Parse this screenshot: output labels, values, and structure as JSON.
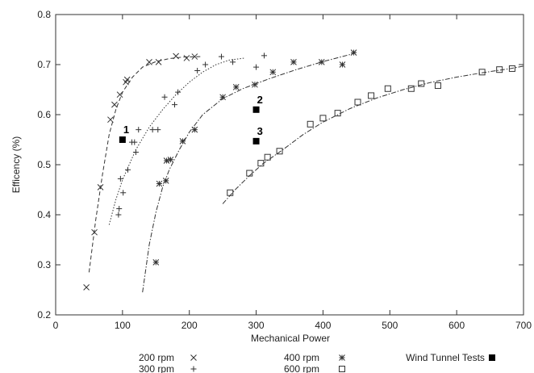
{
  "chart_data": {
    "type": "scatter",
    "xlabel": "Mechanical Power",
    "ylabel": "Efficency (%)",
    "xlim": [
      0,
      700
    ],
    "ylim": [
      0.2,
      0.8
    ],
    "x_ticks": [
      "0",
      "100",
      "200",
      "300",
      "400",
      "500",
      "600",
      "700"
    ],
    "y_ticks": [
      "0.2",
      "0.3",
      "0.4",
      "0.5",
      "0.6",
      "0.7",
      "0.8"
    ],
    "grid": false,
    "legend_position": "bottom",
    "series": [
      {
        "name": "200 rpm",
        "marker": "x",
        "points": [
          [
            46,
            0.255
          ],
          [
            58,
            0.365
          ],
          [
            67,
            0.455
          ],
          [
            82,
            0.59
          ],
          [
            88,
            0.62
          ],
          [
            96,
            0.64
          ],
          [
            105,
            0.665
          ],
          [
            107,
            0.67
          ],
          [
            140,
            0.705
          ],
          [
            154,
            0.705
          ],
          [
            180,
            0.717
          ],
          [
            196,
            0.713
          ],
          [
            208,
            0.716
          ]
        ],
        "fit": [
          [
            50,
            0.285
          ],
          [
            60,
            0.39
          ],
          [
            70,
            0.48
          ],
          [
            80,
            0.56
          ],
          [
            90,
            0.61
          ],
          [
            100,
            0.645
          ],
          [
            115,
            0.675
          ],
          [
            130,
            0.695
          ],
          [
            150,
            0.706
          ],
          [
            170,
            0.712
          ],
          [
            190,
            0.715
          ],
          [
            220,
            0.716
          ]
        ]
      },
      {
        "name": "300 rpm",
        "marker": "+",
        "points": [
          [
            94,
            0.4
          ],
          [
            95,
            0.412
          ],
          [
            97,
            0.472
          ],
          [
            101,
            0.444
          ],
          [
            108,
            0.49
          ],
          [
            114,
            0.545
          ],
          [
            118,
            0.545
          ],
          [
            120,
            0.525
          ],
          [
            124,
            0.57
          ],
          [
            145,
            0.57
          ],
          [
            153,
            0.57
          ],
          [
            163,
            0.635
          ],
          [
            178,
            0.62
          ],
          [
            183,
            0.645
          ],
          [
            212,
            0.688
          ],
          [
            224,
            0.7
          ],
          [
            248,
            0.716
          ],
          [
            265,
            0.705
          ],
          [
            300,
            0.695
          ],
          [
            312,
            0.718
          ]
        ],
        "fit": [
          [
            80,
            0.38
          ],
          [
            90,
            0.43
          ],
          [
            100,
            0.47
          ],
          [
            120,
            0.53
          ],
          [
            140,
            0.575
          ],
          [
            160,
            0.61
          ],
          [
            180,
            0.64
          ],
          [
            200,
            0.665
          ],
          [
            220,
            0.685
          ],
          [
            240,
            0.7
          ],
          [
            260,
            0.709
          ],
          [
            283,
            0.713
          ]
        ]
      },
      {
        "name": "400 rpm",
        "marker": "star",
        "points": [
          [
            150,
            0.305
          ],
          [
            155,
            0.462
          ],
          [
            165,
            0.468
          ],
          [
            166,
            0.508
          ],
          [
            172,
            0.51
          ],
          [
            190,
            0.547
          ],
          [
            208,
            0.57
          ],
          [
            250,
            0.635
          ],
          [
            270,
            0.655
          ],
          [
            298,
            0.66
          ],
          [
            325,
            0.685
          ],
          [
            356,
            0.705
          ],
          [
            398,
            0.705
          ],
          [
            429,
            0.7
          ],
          [
            446,
            0.724
          ]
        ],
        "fit": [
          [
            130,
            0.245
          ],
          [
            140,
            0.34
          ],
          [
            150,
            0.405
          ],
          [
            160,
            0.455
          ],
          [
            170,
            0.49
          ],
          [
            185,
            0.53
          ],
          [
            200,
            0.565
          ],
          [
            220,
            0.6
          ],
          [
            250,
            0.632
          ],
          [
            280,
            0.652
          ],
          [
            320,
            0.672
          ],
          [
            360,
            0.69
          ],
          [
            400,
            0.706
          ],
          [
            440,
            0.72
          ],
          [
            450,
            0.725
          ]
        ]
      },
      {
        "name": "600 rpm",
        "marker": "square",
        "points": [
          [
            261,
            0.444
          ],
          [
            290,
            0.483
          ],
          [
            307,
            0.503
          ],
          [
            317,
            0.515
          ],
          [
            335,
            0.527
          ],
          [
            381,
            0.581
          ],
          [
            400,
            0.593
          ],
          [
            422,
            0.603
          ],
          [
            452,
            0.625
          ],
          [
            472,
            0.638
          ],
          [
            497,
            0.652
          ],
          [
            532,
            0.652
          ],
          [
            547,
            0.662
          ],
          [
            572,
            0.658
          ],
          [
            638,
            0.685
          ],
          [
            664,
            0.69
          ],
          [
            683,
            0.692
          ]
        ],
        "fit": [
          [
            250,
            0.422
          ],
          [
            270,
            0.452
          ],
          [
            290,
            0.478
          ],
          [
            310,
            0.502
          ],
          [
            340,
            0.53
          ],
          [
            370,
            0.56
          ],
          [
            400,
            0.585
          ],
          [
            440,
            0.612
          ],
          [
            480,
            0.633
          ],
          [
            520,
            0.65
          ],
          [
            560,
            0.664
          ],
          [
            600,
            0.675
          ],
          [
            640,
            0.684
          ],
          [
            680,
            0.692
          ],
          [
            700,
            0.697
          ]
        ]
      },
      {
        "name": "Wind Tunnel Tests",
        "marker": "filled-square",
        "points": [
          [
            100,
            0.55
          ],
          [
            300,
            0.61
          ],
          [
            300,
            0.547
          ]
        ],
        "labels": [
          "1",
          "2",
          "3"
        ]
      }
    ]
  }
}
